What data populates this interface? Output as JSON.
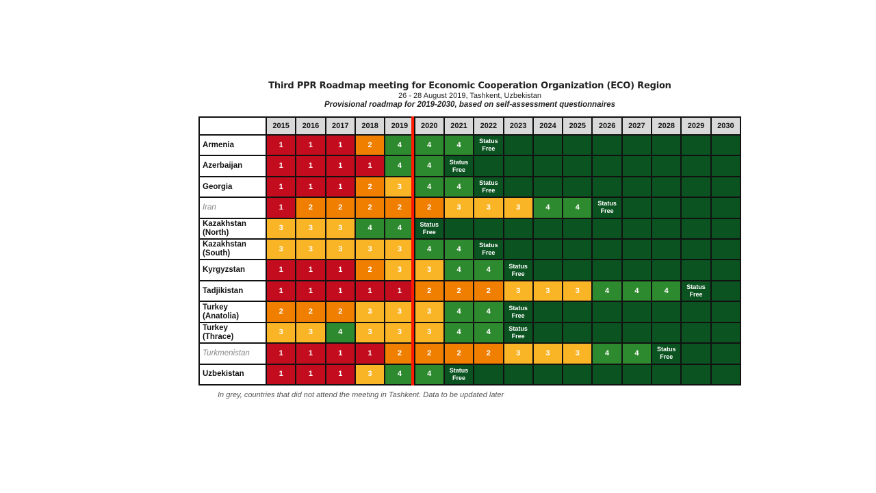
{
  "header": {
    "title": "Third PPR Roadmap meeting for Economic Cooperation Organization (ECO) Region",
    "subtitle": "26 - 28 August 2019, Tashkent, Uzbekistan",
    "caption": "Provisional roadmap for 2019-2030, based on self-assessment questionnaires"
  },
  "years": [
    "2015",
    "2016",
    "2017",
    "2018",
    "2019",
    "2020",
    "2021",
    "2022",
    "2023",
    "2024",
    "2025",
    "2026",
    "2027",
    "2028",
    "2029",
    "2030"
  ],
  "status_free_label": "Status\nFree",
  "colors": {
    "1": "#c30d1f",
    "2": "#f07f00",
    "3": "#fab526",
    "4": "#2e8a2e",
    "S": "#0b5320",
    "": "#0b5320"
  },
  "rows": [
    {
      "name": "Armenia",
      "grey": false,
      "values": [
        "1",
        "1",
        "1",
        "2",
        "4",
        "4",
        "4",
        "S",
        "",
        "",
        "",
        "",
        "",
        "",
        "",
        ""
      ]
    },
    {
      "name": "Azerbaijan",
      "grey": false,
      "values": [
        "1",
        "1",
        "1",
        "1",
        "4",
        "4",
        "S",
        "",
        "",
        "",
        "",
        "",
        "",
        "",
        "",
        ""
      ]
    },
    {
      "name": "Georgia",
      "grey": false,
      "values": [
        "1",
        "1",
        "1",
        "2",
        "3",
        "4",
        "4",
        "S",
        "",
        "",
        "",
        "",
        "",
        "",
        "",
        ""
      ]
    },
    {
      "name": "Iran",
      "grey": true,
      "values": [
        "1",
        "2",
        "2",
        "2",
        "2",
        "2",
        "3",
        "3",
        "3",
        "4",
        "4",
        "S",
        "",
        "",
        "",
        ""
      ]
    },
    {
      "name": "Kazakhstan\n(North)",
      "grey": false,
      "values": [
        "3",
        "3",
        "3",
        "4",
        "4",
        "S",
        "",
        "",
        "",
        "",
        "",
        "",
        "",
        "",
        "",
        ""
      ]
    },
    {
      "name": "Kazakhstan\n(South)",
      "grey": false,
      "values": [
        "3",
        "3",
        "3",
        "3",
        "3",
        "4",
        "4",
        "S",
        "",
        "",
        "",
        "",
        "",
        "",
        "",
        ""
      ]
    },
    {
      "name": "Kyrgyzstan",
      "grey": false,
      "values": [
        "1",
        "1",
        "1",
        "2",
        "3",
        "3",
        "4",
        "4",
        "S",
        "",
        "",
        "",
        "",
        "",
        "",
        ""
      ]
    },
    {
      "name": "Tadjikistan",
      "grey": false,
      "values": [
        "1",
        "1",
        "1",
        "1",
        "1",
        "2",
        "2",
        "2",
        "3",
        "3",
        "3",
        "4",
        "4",
        "4",
        "S",
        ""
      ]
    },
    {
      "name": "Turkey\n(Anatolia)",
      "grey": false,
      "values": [
        "2",
        "2",
        "2",
        "3",
        "3",
        "3",
        "4",
        "4",
        "S",
        "",
        "",
        "",
        "",
        "",
        "",
        ""
      ]
    },
    {
      "name": "Turkey\n(Thrace)",
      "grey": false,
      "values": [
        "3",
        "3",
        "4",
        "3",
        "3",
        "3",
        "4",
        "4",
        "S",
        "",
        "",
        "",
        "",
        "",
        "",
        ""
      ]
    },
    {
      "name": "Turkmenistan",
      "grey": true,
      "values": [
        "1",
        "1",
        "1",
        "1",
        "2",
        "2",
        "2",
        "2",
        "3",
        "3",
        "3",
        "4",
        "4",
        "S",
        "",
        ""
      ]
    },
    {
      "name": "Uzbekistan",
      "grey": false,
      "values": [
        "1",
        "1",
        "1",
        "3",
        "4",
        "4",
        "S",
        "",
        "",
        "",
        "",
        "",
        "",
        "",
        "",
        ""
      ]
    }
  ],
  "footnote": "In grey, countries that did not attend the meeting in Tashkent. Data to be updated later"
}
